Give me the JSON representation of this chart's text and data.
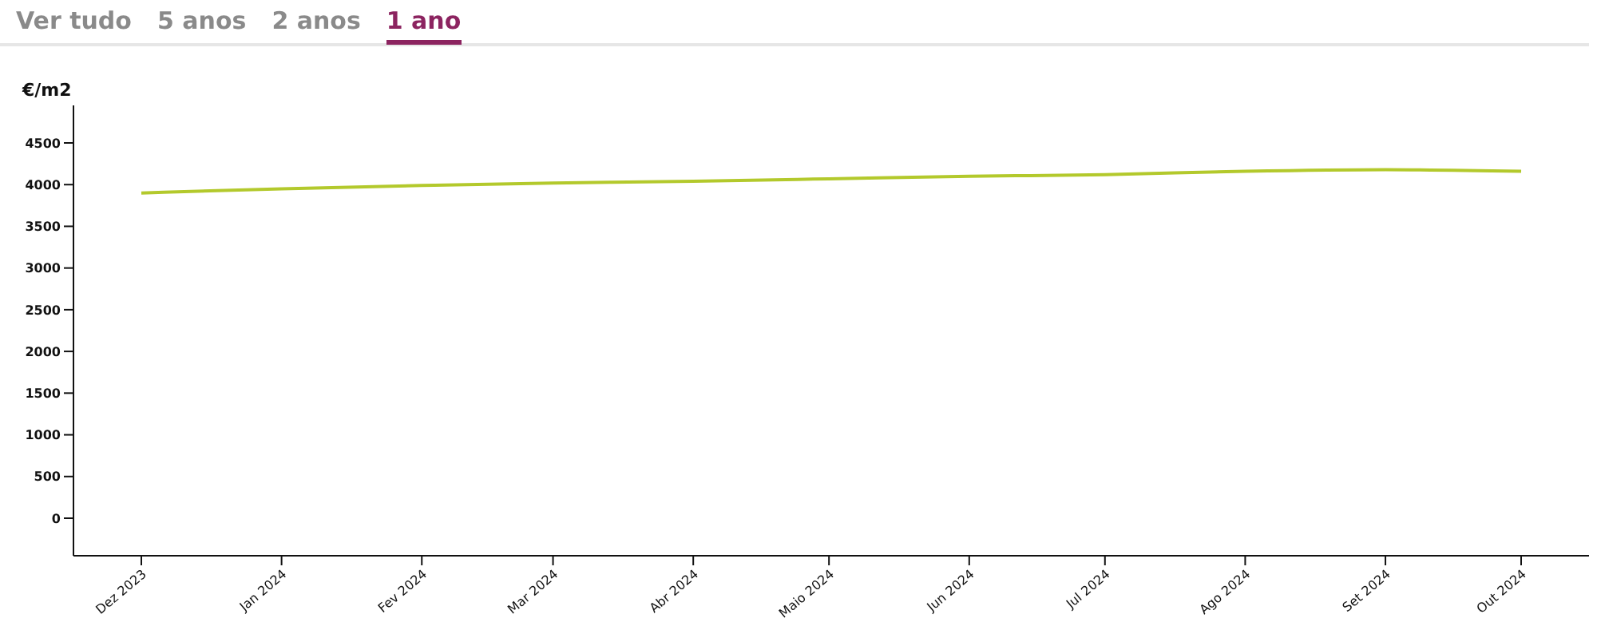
{
  "chart_data": {
    "type": "line",
    "annotations": [
      "Ver tudo",
      "5 anos",
      "2 anos",
      "1 ano"
    ],
    "ylabel": "€/m2",
    "x": [
      "2023-12",
      "2024-01",
      "2024-02",
      "2024-03",
      "2024-04",
      "2024-05",
      "2024-06",
      "2024-07",
      "2024-08",
      "2024-09",
      "2024-10"
    ],
    "series": [
      {
        "color": "#b3c92c",
        "values": [
          3900,
          3950,
          3990,
          4020,
          4040,
          4070,
          4100,
          4120,
          4160,
          4180,
          4160
        ]
      }
    ],
    "xlim": [
      "2023-11-16",
      "2024-10-16"
    ],
    "xticks": [
      {
        "value": "2023-12",
        "label": "Dez 2023"
      },
      {
        "value": "2024-01",
        "label": "Jan 2024"
      },
      {
        "value": "2024-02",
        "label": "Fev 2024"
      },
      {
        "value": "2024-03",
        "label": "Mar 2024"
      },
      {
        "value": "2024-04",
        "label": "Abr 2024"
      },
      {
        "value": "2024-05",
        "label": "Maio 2024"
      },
      {
        "value": "2024-06",
        "label": "Jun 2024"
      },
      {
        "value": "2024-07",
        "label": "Jul 2024"
      },
      {
        "value": "2024-08",
        "label": "Ago 2024"
      },
      {
        "value": "2024-09",
        "label": "Set 2024"
      },
      {
        "value": "2024-10",
        "label": "Out 2024"
      }
    ],
    "ylim": [
      -450,
      4950
    ],
    "yticks": [
      0,
      500,
      1000,
      1500,
      2000,
      2500,
      3000,
      3500,
      4000,
      4500
    ],
    "grid": false,
    "legend": false,
    "marker": "none",
    "line_style": "solid"
  }
}
